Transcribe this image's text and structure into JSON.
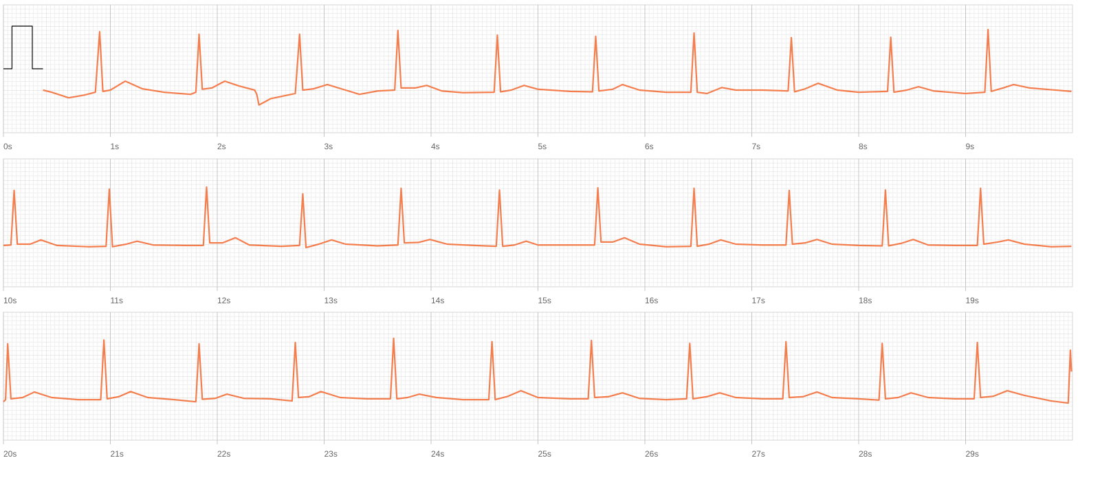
{
  "chart_data": [
    {
      "type": "line",
      "xlim": [
        0,
        10
      ],
      "ylim": [
        -1,
        2
      ],
      "grid": true,
      "xticks": [
        {
          "value": 0,
          "label": "0s"
        },
        {
          "value": 1,
          "label": "1s"
        },
        {
          "value": 2,
          "label": "2s"
        },
        {
          "value": 3,
          "label": "3s"
        },
        {
          "value": 4,
          "label": "4s"
        },
        {
          "value": 5,
          "label": "5s"
        },
        {
          "value": 6,
          "label": "6s"
        },
        {
          "value": 7,
          "label": "7s"
        },
        {
          "value": 8,
          "label": "8s"
        },
        {
          "value": 9,
          "label": "9s"
        }
      ],
      "calibration": {
        "color": "#000000",
        "x": [
          0,
          0.08,
          0.08,
          0.27,
          0.27,
          0.37
        ],
        "values": [
          0.5,
          0.5,
          1.5,
          1.5,
          0.5,
          0.5
        ]
      },
      "x": [
        0.37,
        0.45,
        0.61,
        0.75,
        0.86,
        0.9,
        0.93,
        1.0,
        1.14,
        1.3,
        1.5,
        1.75,
        1.8,
        1.83,
        1.86,
        1.95,
        2.07,
        2.2,
        2.35,
        2.37,
        2.39,
        2.5,
        2.73,
        2.77,
        2.8,
        2.9,
        3.03,
        3.2,
        3.33,
        3.5,
        3.66,
        3.69,
        3.72,
        3.85,
        3.96,
        4.1,
        4.3,
        4.59,
        4.62,
        4.65,
        4.75,
        4.87,
        5.0,
        5.3,
        5.51,
        5.54,
        5.57,
        5.7,
        5.79,
        5.95,
        6.2,
        6.43,
        6.46,
        6.49,
        6.58,
        6.72,
        6.85,
        7.1,
        7.34,
        7.37,
        7.4,
        7.5,
        7.62,
        7.8,
        8.0,
        8.27,
        8.3,
        8.33,
        8.45,
        8.56,
        8.7,
        9.0,
        9.18,
        9.21,
        9.24,
        9.35,
        9.45,
        9.6,
        9.99
      ],
      "series": [
        {
          "color": "#f47d4d",
          "values": [
            0,
            -0.05,
            -0.18,
            -0.12,
            -0.05,
            1.37,
            -0.03,
            0.0,
            0.21,
            0.03,
            -0.05,
            -0.1,
            -0.05,
            1.31,
            0.02,
            0.05,
            0.21,
            0.1,
            0.0,
            -0.1,
            -0.35,
            -0.2,
            -0.08,
            1.31,
            0.0,
            0.03,
            0.13,
            0.0,
            -0.1,
            -0.02,
            0.0,
            1.4,
            0.05,
            0.05,
            0.11,
            -0.02,
            -0.06,
            -0.05,
            1.29,
            -0.04,
            0.0,
            0.11,
            0.02,
            -0.03,
            -0.04,
            1.26,
            -0.02,
            0.02,
            0.13,
            0.0,
            -0.05,
            -0.05,
            1.34,
            -0.05,
            -0.08,
            0.06,
            0.0,
            0.0,
            -0.02,
            1.23,
            -0.04,
            0.03,
            0.16,
            0.0,
            -0.05,
            -0.03,
            1.24,
            -0.05,
            0.0,
            0.08,
            -0.02,
            -0.08,
            -0.05,
            1.42,
            -0.03,
            0.05,
            0.13,
            0.05,
            -0.03
          ]
        }
      ]
    },
    {
      "type": "line",
      "xlim": [
        10,
        20
      ],
      "ylim": [
        -1,
        2
      ],
      "grid": true,
      "xticks": [
        {
          "value": 10,
          "label": "10s"
        },
        {
          "value": 11,
          "label": "11s"
        },
        {
          "value": 12,
          "label": "12s"
        },
        {
          "value": 13,
          "label": "13s"
        },
        {
          "value": 14,
          "label": "14s"
        },
        {
          "value": 15,
          "label": "15s"
        },
        {
          "value": 16,
          "label": "16s"
        },
        {
          "value": 17,
          "label": "17s"
        },
        {
          "value": 18,
          "label": "18s"
        },
        {
          "value": 19,
          "label": "19s"
        }
      ],
      "x": [
        10.0,
        10.07,
        10.1,
        10.13,
        10.25,
        10.35,
        10.5,
        10.8,
        10.96,
        10.99,
        11.02,
        11.15,
        11.25,
        11.4,
        11.7,
        11.87,
        11.9,
        11.93,
        12.05,
        12.17,
        12.3,
        12.6,
        12.77,
        12.8,
        12.83,
        12.95,
        13.07,
        13.2,
        13.5,
        13.69,
        13.72,
        13.75,
        13.88,
        13.99,
        14.15,
        14.4,
        14.61,
        14.64,
        14.67,
        14.78,
        14.89,
        15.0,
        15.3,
        15.53,
        15.56,
        15.59,
        15.7,
        15.81,
        15.95,
        16.2,
        16.43,
        16.46,
        16.49,
        16.6,
        16.71,
        16.85,
        17.1,
        17.32,
        17.35,
        17.38,
        17.5,
        17.61,
        17.75,
        18.0,
        18.22,
        18.25,
        18.28,
        18.4,
        18.51,
        18.65,
        18.9,
        19.11,
        19.14,
        19.17,
        19.3,
        19.4,
        19.55,
        19.8,
        19.99
      ],
      "series": [
        {
          "color": "#f47d4d",
          "values": [
            -0.03,
            -0.02,
            1.26,
            0.0,
            0.0,
            0.1,
            -0.03,
            -0.06,
            -0.05,
            1.29,
            -0.06,
            0.0,
            0.07,
            -0.02,
            -0.03,
            -0.03,
            1.34,
            0.03,
            0.03,
            0.15,
            -0.02,
            -0.05,
            -0.03,
            1.18,
            -0.08,
            0.0,
            0.1,
            0.0,
            -0.04,
            -0.02,
            1.31,
            0.03,
            0.04,
            0.11,
            0.0,
            -0.03,
            -0.05,
            1.27,
            -0.05,
            -0.02,
            0.07,
            -0.02,
            -0.02,
            -0.02,
            1.32,
            0.05,
            0.05,
            0.15,
            0.0,
            -0.06,
            -0.05,
            1.31,
            -0.05,
            0.0,
            0.1,
            0.0,
            -0.02,
            -0.02,
            1.26,
            0.0,
            0.03,
            0.11,
            0.0,
            -0.03,
            -0.04,
            1.27,
            -0.04,
            0.02,
            0.11,
            -0.02,
            -0.03,
            -0.03,
            1.31,
            0.0,
            0.05,
            0.1,
            0.0,
            -0.06,
            -0.05
          ]
        }
      ]
    },
    {
      "type": "line",
      "xlim": [
        20,
        30
      ],
      "ylim": [
        -1,
        2
      ],
      "grid": true,
      "xticks": [
        {
          "value": 20,
          "label": "20s"
        },
        {
          "value": 21,
          "label": "21s"
        },
        {
          "value": 22,
          "label": "22s"
        },
        {
          "value": 23,
          "label": "23s"
        },
        {
          "value": 24,
          "label": "24s"
        },
        {
          "value": 25,
          "label": "25s"
        },
        {
          "value": 26,
          "label": "26s"
        },
        {
          "value": 27,
          "label": "27s"
        },
        {
          "value": 28,
          "label": "28s"
        },
        {
          "value": 29,
          "label": "29s"
        }
      ],
      "x": [
        20.0,
        20.02,
        20.04,
        20.07,
        20.18,
        20.29,
        20.45,
        20.7,
        20.91,
        20.94,
        20.97,
        21.08,
        21.19,
        21.35,
        21.6,
        21.8,
        21.83,
        21.86,
        21.98,
        22.09,
        22.25,
        22.5,
        22.7,
        22.73,
        22.76,
        22.86,
        22.97,
        23.15,
        23.4,
        23.62,
        23.65,
        23.68,
        23.78,
        23.89,
        24.05,
        24.3,
        24.54,
        24.57,
        24.6,
        24.72,
        24.84,
        25.0,
        25.3,
        25.47,
        25.5,
        25.53,
        25.66,
        25.79,
        25.95,
        26.2,
        26.39,
        26.42,
        26.45,
        26.58,
        26.7,
        26.85,
        27.1,
        27.29,
        27.32,
        27.35,
        27.48,
        27.61,
        27.75,
        28.0,
        28.19,
        28.22,
        28.25,
        28.37,
        28.49,
        28.65,
        28.9,
        29.08,
        29.11,
        29.14,
        29.26,
        29.39,
        29.55,
        29.8,
        29.96,
        29.98,
        29.99
      ],
      "series": [
        {
          "color": "#f47d4d",
          "values": [
            -0.1,
            -0.05,
            1.26,
            -0.03,
            0.0,
            0.13,
            0.0,
            -0.05,
            -0.05,
            1.35,
            -0.03,
            0.02,
            0.14,
            0.0,
            -0.05,
            -0.1,
            1.26,
            -0.04,
            -0.02,
            0.08,
            -0.02,
            -0.03,
            -0.08,
            1.29,
            0.0,
            0.02,
            0.14,
            0.0,
            -0.03,
            -0.03,
            1.39,
            -0.03,
            0.0,
            0.08,
            0.0,
            -0.05,
            -0.05,
            1.31,
            -0.05,
            0.03,
            0.16,
            0.0,
            -0.03,
            -0.03,
            1.34,
            0.0,
            0.02,
            0.11,
            -0.02,
            -0.05,
            -0.03,
            1.27,
            -0.03,
            0.02,
            0.11,
            0.0,
            -0.03,
            -0.03,
            1.31,
            0.0,
            0.02,
            0.13,
            0.0,
            -0.03,
            -0.06,
            1.27,
            -0.03,
            0.0,
            0.11,
            0.0,
            -0.03,
            -0.03,
            1.29,
            0.0,
            0.03,
            0.16,
            0.05,
            -0.08,
            -0.13,
            1.11,
            0.61
          ]
        }
      ]
    }
  ]
}
